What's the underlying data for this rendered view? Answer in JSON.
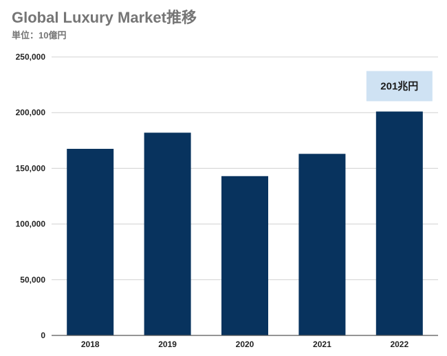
{
  "chart_data": {
    "type": "bar",
    "title": "Global Luxury Market推移",
    "subtitle": "単位：10億円",
    "categories": [
      "2018",
      "2019",
      "2020",
      "2021",
      "2022"
    ],
    "values": [
      167500,
      182000,
      143000,
      163000,
      201000
    ],
    "yticks": [
      "0",
      "50,000",
      "100,000",
      "150,000",
      "200,000",
      "250,000"
    ],
    "ylim": [
      0,
      250000
    ],
    "grid": true,
    "legend": "none",
    "colors": {
      "bar": "#08335e",
      "grid": "#d0d0d0",
      "axis": "#555555",
      "annotation_bg": "#cfe2f3"
    },
    "annotation": {
      "category": "2022",
      "text": "201兆円"
    }
  }
}
